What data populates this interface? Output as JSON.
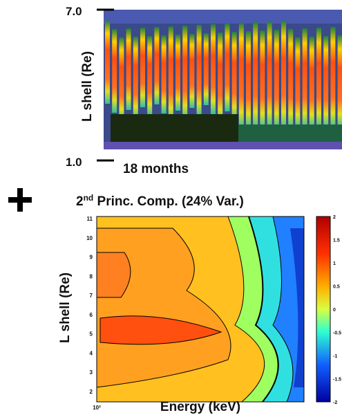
{
  "top_panel": {
    "y_label": "L shell (Re)",
    "y_top_label": "7.0",
    "y_bottom_label": "1.0",
    "x_label": "18 months"
  },
  "bottom_panel": {
    "title_number": "2",
    "title_suffix": "nd",
    "title_rest": " Princ. Comp. (24%  Var.)",
    "y_label": "L shell (Re)",
    "yticks": [
      "11",
      "10",
      "9",
      "8",
      "7",
      "6",
      "5",
      "4",
      "3",
      "2"
    ],
    "x_label": "Energy (keV)",
    "x_start_label": "10²",
    "colorbar_ticks": [
      "2",
      "1.5",
      "1",
      "0.5",
      "0",
      "-0.5",
      "-1",
      "-1.5",
      "-2"
    ]
  }
}
